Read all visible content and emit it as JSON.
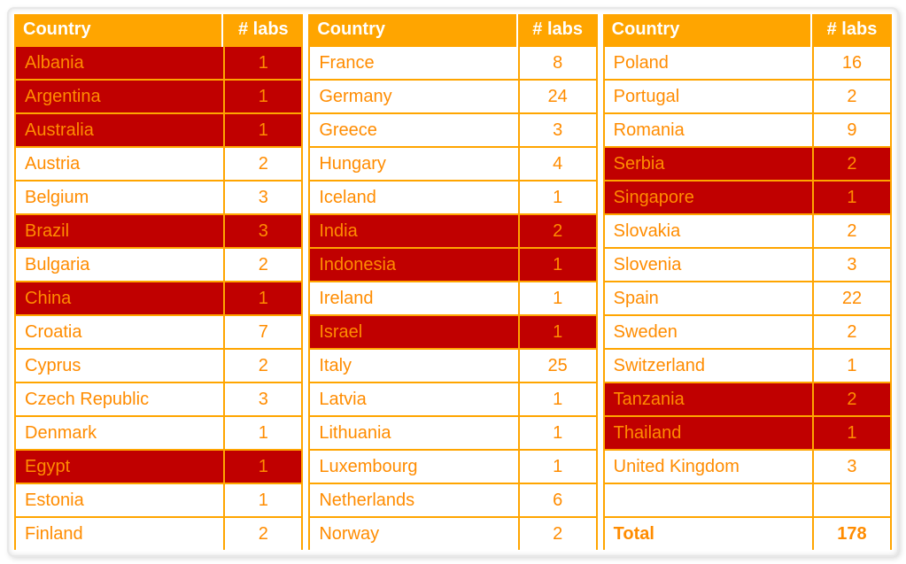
{
  "headers": {
    "country": "Country",
    "labs": "# labs"
  },
  "colors": {
    "header_bg": "#ffa500",
    "header_text": "#ffffff",
    "cell_text": "#ff8c00",
    "border": "#ffa500",
    "highlight_bg": "#c00000",
    "background": "#ffffff"
  },
  "columns": [
    {
      "rows": [
        {
          "country": "Albania",
          "labs": 1,
          "highlight": true
        },
        {
          "country": "Argentina",
          "labs": 1,
          "highlight": true
        },
        {
          "country": "Australia",
          "labs": 1,
          "highlight": true
        },
        {
          "country": "Austria",
          "labs": 2,
          "highlight": false
        },
        {
          "country": "Belgium",
          "labs": 3,
          "highlight": false
        },
        {
          "country": "Brazil",
          "labs": 3,
          "highlight": true
        },
        {
          "country": "Bulgaria",
          "labs": 2,
          "highlight": false
        },
        {
          "country": "China",
          "labs": 1,
          "highlight": true
        },
        {
          "country": "Croatia",
          "labs": 7,
          "highlight": false
        },
        {
          "country": "Cyprus",
          "labs": 2,
          "highlight": false
        },
        {
          "country": "Czech Republic",
          "labs": 3,
          "highlight": false
        },
        {
          "country": "Denmark",
          "labs": 1,
          "highlight": false
        },
        {
          "country": "Egypt",
          "labs": 1,
          "highlight": true
        },
        {
          "country": "Estonia",
          "labs": 1,
          "highlight": false
        },
        {
          "country": "Finland",
          "labs": 2,
          "highlight": false
        }
      ]
    },
    {
      "rows": [
        {
          "country": "France",
          "labs": 8,
          "highlight": false
        },
        {
          "country": "Germany",
          "labs": 24,
          "highlight": false
        },
        {
          "country": "Greece",
          "labs": 3,
          "highlight": false
        },
        {
          "country": "Hungary",
          "labs": 4,
          "highlight": false
        },
        {
          "country": "Iceland",
          "labs": 1,
          "highlight": false
        },
        {
          "country": "India",
          "labs": 2,
          "highlight": true
        },
        {
          "country": "Indonesia",
          "labs": 1,
          "highlight": true
        },
        {
          "country": "Ireland",
          "labs": 1,
          "highlight": false
        },
        {
          "country": "Israel",
          "labs": 1,
          "highlight": true
        },
        {
          "country": "Italy",
          "labs": 25,
          "highlight": false
        },
        {
          "country": "Latvia",
          "labs": 1,
          "highlight": false
        },
        {
          "country": "Lithuania",
          "labs": 1,
          "highlight": false
        },
        {
          "country": "Luxembourg",
          "labs": 1,
          "highlight": false
        },
        {
          "country": "Netherlands",
          "labs": 6,
          "highlight": false
        },
        {
          "country": "Norway",
          "labs": 2,
          "highlight": false
        }
      ]
    },
    {
      "rows": [
        {
          "country": "Poland",
          "labs": 16,
          "highlight": false
        },
        {
          "country": "Portugal",
          "labs": 2,
          "highlight": false
        },
        {
          "country": "Romania",
          "labs": 9,
          "highlight": false
        },
        {
          "country": "Serbia",
          "labs": 2,
          "highlight": true
        },
        {
          "country": "Singapore",
          "labs": 1,
          "highlight": true
        },
        {
          "country": "Slovakia",
          "labs": 2,
          "highlight": false
        },
        {
          "country": "Slovenia",
          "labs": 3,
          "highlight": false
        },
        {
          "country": "Spain",
          "labs": 22,
          "highlight": false
        },
        {
          "country": "Sweden",
          "labs": 2,
          "highlight": false
        },
        {
          "country": "Switzerland",
          "labs": 1,
          "highlight": false
        },
        {
          "country": "Tanzania",
          "labs": 2,
          "highlight": true
        },
        {
          "country": "Thailand",
          "labs": 1,
          "highlight": true
        },
        {
          "country": "United Kingdom",
          "labs": 3,
          "highlight": false
        },
        {
          "country": "",
          "labs": "",
          "highlight": false,
          "empty": true
        },
        {
          "country": "Total",
          "labs": 178,
          "highlight": false,
          "total": true
        }
      ]
    }
  ]
}
